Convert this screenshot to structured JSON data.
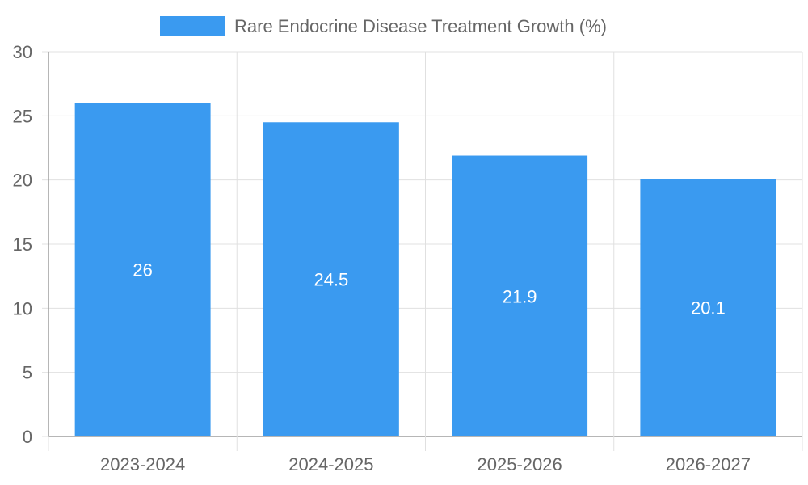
{
  "chart_data": {
    "type": "bar",
    "title": "",
    "xlabel": "",
    "ylabel": "",
    "categories": [
      "2023-2024",
      "2024-2025",
      "2025-2026",
      "2026-2027"
    ],
    "series": [
      {
        "name": "Rare Endocrine Disease Treatment Growth (%)",
        "values": [
          26,
          24.5,
          21.9,
          20.1
        ],
        "color": "#3a9af0"
      }
    ],
    "ylim": [
      0,
      30
    ],
    "yticks": [
      "0",
      "5",
      "10",
      "15",
      "20",
      "25",
      "30"
    ],
    "data_labels": [
      "26",
      "24.5",
      "21.9",
      "20.1"
    ],
    "grid": true,
    "legend_position": "top-center"
  },
  "colors": {
    "bar": "#3a9af0",
    "grid": "#e0e0e0",
    "axis": "#9e9e9e",
    "text": "#666666",
    "label": "#ffffff"
  }
}
